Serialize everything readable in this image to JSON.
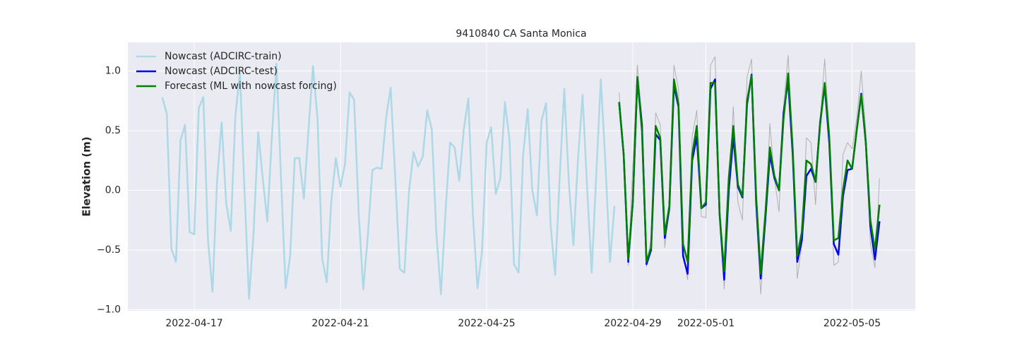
{
  "chart_data": {
    "type": "line",
    "title": "9410840 CA Santa Monica",
    "y_label": "Elevation (m)",
    "xlim": [
      "2022-04-15T04:24",
      "2022-05-06T17:30"
    ],
    "xticks": [
      "2022-04-17",
      "2022-04-21",
      "2022-04-25",
      "2022-04-29",
      "2022-05-01",
      "2022-05-05"
    ],
    "ylim": [
      -1.01,
      1.24
    ],
    "yticks": [
      {
        "value": -1,
        "label": "−1.0"
      },
      {
        "value": -0.5,
        "label": "−0.5"
      },
      {
        "value": 0,
        "label": "0.0"
      },
      {
        "value": 0.5,
        "label": "0.5"
      },
      {
        "value": 1,
        "label": "1.0"
      }
    ],
    "grid": true,
    "legend": "upper left",
    "background": "#eaeaf2",
    "series": [
      {
        "name": "Nowcast (ADCIRC-train)",
        "color": "#add8e6",
        "width": 2.5,
        "x": [
          "2022-04-16T03:00",
          "2022-04-16T06:00",
          "2022-04-16T09:00",
          "2022-04-16T12:00",
          "2022-04-16T15:00",
          "2022-04-16T18:00",
          "2022-04-16T21:00",
          "2022-04-17T00:00",
          "2022-04-17T03:00",
          "2022-04-17T06:00",
          "2022-04-17T09:00",
          "2022-04-17T12:00",
          "2022-04-17T15:00",
          "2022-04-17T18:00",
          "2022-04-17T21:00",
          "2022-04-18T00:00",
          "2022-04-18T03:00",
          "2022-04-18T06:00",
          "2022-04-18T09:00",
          "2022-04-18T12:00",
          "2022-04-18T15:00",
          "2022-04-18T18:00",
          "2022-04-18T21:00",
          "2022-04-19T00:00",
          "2022-04-19T03:00",
          "2022-04-19T06:00",
          "2022-04-19T09:00",
          "2022-04-19T12:00",
          "2022-04-19T15:00",
          "2022-04-19T18:00",
          "2022-04-19T21:00",
          "2022-04-20T00:00",
          "2022-04-20T03:00",
          "2022-04-20T06:00",
          "2022-04-20T09:00",
          "2022-04-20T12:00",
          "2022-04-20T15:00",
          "2022-04-20T18:00",
          "2022-04-20T21:00",
          "2022-04-21T00:00",
          "2022-04-21T03:00",
          "2022-04-21T06:00",
          "2022-04-21T09:00",
          "2022-04-21T12:00",
          "2022-04-21T15:00",
          "2022-04-21T18:00",
          "2022-04-21T21:00",
          "2022-04-22T00:00",
          "2022-04-22T03:00",
          "2022-04-22T06:00",
          "2022-04-22T09:00",
          "2022-04-22T12:00",
          "2022-04-22T15:00",
          "2022-04-22T18:00",
          "2022-04-22T21:00",
          "2022-04-23T00:00",
          "2022-04-23T03:00",
          "2022-04-23T06:00",
          "2022-04-23T09:00",
          "2022-04-23T12:00",
          "2022-04-23T15:00",
          "2022-04-23T18:00",
          "2022-04-23T21:00",
          "2022-04-24T00:00",
          "2022-04-24T03:00",
          "2022-04-24T06:00",
          "2022-04-24T09:00",
          "2022-04-24T12:00",
          "2022-04-24T15:00",
          "2022-04-24T18:00",
          "2022-04-24T21:00",
          "2022-04-25T00:00",
          "2022-04-25T03:00",
          "2022-04-25T06:00",
          "2022-04-25T09:00",
          "2022-04-25T12:00",
          "2022-04-25T15:00",
          "2022-04-25T18:00",
          "2022-04-25T21:00",
          "2022-04-26T00:00",
          "2022-04-26T03:00",
          "2022-04-26T06:00",
          "2022-04-26T09:00",
          "2022-04-26T12:00",
          "2022-04-26T15:00",
          "2022-04-26T18:00",
          "2022-04-26T21:00",
          "2022-04-27T00:00",
          "2022-04-27T03:00",
          "2022-04-27T06:00",
          "2022-04-27T09:00",
          "2022-04-27T12:00",
          "2022-04-27T15:00",
          "2022-04-27T18:00",
          "2022-04-27T21:00",
          "2022-04-28T00:00",
          "2022-04-28T03:00",
          "2022-04-28T06:00",
          "2022-04-28T09:00",
          "2022-04-28T12:00"
        ],
        "values": [
          0.78,
          0.64,
          -0.49,
          -0.6,
          0.42,
          0.55,
          -0.35,
          -0.37,
          0.69,
          0.78,
          -0.41,
          -0.85,
          0.08,
          0.57,
          -0.11,
          -0.34,
          0.62,
          0.99,
          0.0,
          -0.91,
          -0.35,
          0.49,
          0.1,
          -0.26,
          0.45,
          1.06,
          0.1,
          -0.82,
          -0.55,
          0.27,
          0.27,
          -0.07,
          0.5,
          1.04,
          0.59,
          -0.57,
          -0.77,
          -0.09,
          0.27,
          0.03,
          0.22,
          0.82,
          0.76,
          -0.19,
          -0.83,
          -0.38,
          0.17,
          0.19,
          0.18,
          0.61,
          0.86,
          0.1,
          -0.66,
          -0.69,
          -0.01,
          0.32,
          0.2,
          0.28,
          0.67,
          0.51,
          -0.36,
          -0.87,
          -0.18,
          0.4,
          0.36,
          0.08,
          0.51,
          0.77,
          -0.21,
          -0.82,
          -0.51,
          0.4,
          0.53,
          -0.03,
          0.1,
          0.74,
          0.43,
          -0.62,
          -0.69,
          0.3,
          0.68,
          0.0,
          -0.21,
          0.58,
          0.73,
          -0.29,
          -0.71,
          0.11,
          0.85,
          0.07,
          -0.46,
          0.26,
          0.8,
          0.02,
          -0.69,
          0.13,
          0.93,
          0.23,
          -0.6,
          -0.13
        ]
      },
      {
        "color": "#b0b0b0",
        "width": 1,
        "x": [
          "2022-04-28T15:00",
          "2022-04-28T18:00",
          "2022-04-28T21:00",
          "2022-04-29T00:00",
          "2022-04-29T03:00",
          "2022-04-29T06:00",
          "2022-04-29T09:00",
          "2022-04-29T12:00",
          "2022-04-29T15:00",
          "2022-04-29T18:00",
          "2022-04-29T21:00",
          "2022-04-30T00:00",
          "2022-04-30T03:00",
          "2022-04-30T06:00",
          "2022-04-30T09:00",
          "2022-04-30T12:00",
          "2022-04-30T15:00",
          "2022-04-30T18:00",
          "2022-04-30T21:00",
          "2022-05-01T00:00",
          "2022-05-01T03:00",
          "2022-05-01T06:00",
          "2022-05-01T09:00",
          "2022-05-01T12:00",
          "2022-05-01T15:00",
          "2022-05-01T18:00",
          "2022-05-01T21:00",
          "2022-05-02T00:00",
          "2022-05-02T03:00",
          "2022-05-02T06:00",
          "2022-05-02T09:00",
          "2022-05-02T12:00",
          "2022-05-02T15:00",
          "2022-05-02T18:00",
          "2022-05-02T21:00",
          "2022-05-03T00:00",
          "2022-05-03T03:00",
          "2022-05-03T06:00",
          "2022-05-03T09:00",
          "2022-05-03T12:00",
          "2022-05-03T15:00",
          "2022-05-03T18:00",
          "2022-05-03T21:00",
          "2022-05-04T00:00",
          "2022-05-04T03:00",
          "2022-05-04T06:00",
          "2022-05-04T09:00",
          "2022-05-04T12:00",
          "2022-05-04T15:00",
          "2022-05-04T18:00",
          "2022-05-04T21:00",
          "2022-05-05T00:00",
          "2022-05-05T03:00",
          "2022-05-05T06:00",
          "2022-05-05T09:00",
          "2022-05-05T12:00",
          "2022-05-05T15:00",
          "2022-05-05T18:00"
        ],
        "values": [
          0.82,
          0.35,
          -0.63,
          0.2,
          1.05,
          0.6,
          -0.64,
          -0.4,
          0.65,
          0.55,
          -0.48,
          -0.1,
          1.05,
          0.85,
          -0.5,
          -0.75,
          0.45,
          0.67,
          -0.22,
          -0.23,
          1.05,
          1.12,
          -0.15,
          -0.83,
          0.0,
          0.7,
          -0.1,
          -0.25,
          0.95,
          1.1,
          -0.2,
          -0.87,
          -0.3,
          0.56,
          0.1,
          -0.18,
          0.7,
          1.13,
          0.4,
          -0.74,
          -0.45,
          0.44,
          0.4,
          -0.12,
          0.58,
          1.1,
          0.5,
          -0.63,
          -0.6,
          0.3,
          0.4,
          0.35,
          0.6,
          1.0,
          0.5,
          -0.45,
          -0.65,
          0.1
        ]
      },
      {
        "name": "Nowcast (ADCIRC-test)",
        "color": "#0000ff",
        "width": 2.5,
        "x": [
          "2022-04-28T15:00",
          "2022-04-28T18:00",
          "2022-04-28T21:00",
          "2022-04-29T00:00",
          "2022-04-29T03:00",
          "2022-04-29T06:00",
          "2022-04-29T09:00",
          "2022-04-29T12:00",
          "2022-04-29T15:00",
          "2022-04-29T18:00",
          "2022-04-29T21:00",
          "2022-04-30T00:00",
          "2022-04-30T03:00",
          "2022-04-30T06:00",
          "2022-04-30T09:00",
          "2022-04-30T12:00",
          "2022-04-30T15:00",
          "2022-04-30T18:00",
          "2022-04-30T21:00",
          "2022-05-01T00:00",
          "2022-05-01T03:00",
          "2022-05-01T06:00",
          "2022-05-01T09:00",
          "2022-05-01T12:00",
          "2022-05-01T15:00",
          "2022-05-01T18:00",
          "2022-05-01T21:00",
          "2022-05-02T00:00",
          "2022-05-02T03:00",
          "2022-05-02T06:00",
          "2022-05-02T09:00",
          "2022-05-02T12:00",
          "2022-05-02T15:00",
          "2022-05-02T18:00",
          "2022-05-02T21:00",
          "2022-05-03T00:00",
          "2022-05-03T03:00",
          "2022-05-03T06:00",
          "2022-05-03T09:00",
          "2022-05-03T12:00",
          "2022-05-03T15:00",
          "2022-05-03T18:00",
          "2022-05-03T21:00",
          "2022-05-04T00:00",
          "2022-05-04T03:00",
          "2022-05-04T06:00",
          "2022-05-04T09:00",
          "2022-05-04T12:00",
          "2022-05-04T15:00",
          "2022-05-04T18:00",
          "2022-05-04T21:00",
          "2022-05-05T00:00",
          "2022-05-05T03:00",
          "2022-05-05T06:00",
          "2022-05-05T09:00",
          "2022-05-05T12:00",
          "2022-05-05T15:00",
          "2022-05-05T18:00"
        ],
        "values": [
          0.74,
          0.3,
          -0.6,
          -0.1,
          0.93,
          0.55,
          -0.62,
          -0.5,
          0.47,
          0.42,
          -0.4,
          -0.15,
          0.88,
          0.7,
          -0.55,
          -0.7,
          0.25,
          0.45,
          -0.15,
          -0.12,
          0.85,
          0.93,
          -0.2,
          -0.75,
          0.0,
          0.45,
          0.03,
          -0.06,
          0.72,
          0.97,
          -0.1,
          -0.74,
          -0.25,
          0.3,
          0.1,
          0.0,
          0.65,
          0.92,
          0.3,
          -0.6,
          -0.42,
          0.12,
          0.18,
          0.07,
          0.57,
          0.88,
          0.4,
          -0.45,
          -0.54,
          -0.05,
          0.17,
          0.18,
          0.5,
          0.81,
          0.4,
          -0.3,
          -0.58,
          -0.26
        ]
      },
      {
        "name": "Forecast (ML with nowcast forcing)",
        "color": "#008000",
        "width": 2.5,
        "x": [
          "2022-04-28T15:00",
          "2022-04-28T18:00",
          "2022-04-28T21:00",
          "2022-04-29T00:00",
          "2022-04-29T03:00",
          "2022-04-29T06:00",
          "2022-04-29T09:00",
          "2022-04-29T12:00",
          "2022-04-29T15:00",
          "2022-04-29T18:00",
          "2022-04-29T21:00",
          "2022-04-30T00:00",
          "2022-04-30T03:00",
          "2022-04-30T06:00",
          "2022-04-30T09:00",
          "2022-04-30T12:00",
          "2022-04-30T15:00",
          "2022-04-30T18:00",
          "2022-04-30T21:00",
          "2022-05-01T00:00",
          "2022-05-01T03:00",
          "2022-05-01T06:00",
          "2022-05-01T09:00",
          "2022-05-01T12:00",
          "2022-05-01T15:00",
          "2022-05-01T18:00",
          "2022-05-01T21:00",
          "2022-05-02T00:00",
          "2022-05-02T03:00",
          "2022-05-02T06:00",
          "2022-05-02T09:00",
          "2022-05-02T12:00",
          "2022-05-02T15:00",
          "2022-05-02T18:00",
          "2022-05-02T21:00",
          "2022-05-03T00:00",
          "2022-05-03T03:00",
          "2022-05-03T06:00",
          "2022-05-03T09:00",
          "2022-05-03T12:00",
          "2022-05-03T15:00",
          "2022-05-03T18:00",
          "2022-05-03T21:00",
          "2022-05-04T00:00",
          "2022-05-04T03:00",
          "2022-05-04T06:00",
          "2022-05-04T09:00",
          "2022-05-04T12:00",
          "2022-05-04T15:00",
          "2022-05-04T18:00",
          "2022-05-04T21:00",
          "2022-05-05T00:00",
          "2022-05-05T03:00",
          "2022-05-05T06:00",
          "2022-05-05T09:00",
          "2022-05-05T12:00",
          "2022-05-05T15:00",
          "2022-05-05T18:00"
        ],
        "values": [
          0.74,
          0.3,
          -0.58,
          -0.1,
          0.95,
          0.5,
          -0.6,
          -0.48,
          0.54,
          0.44,
          -0.37,
          -0.13,
          0.93,
          0.72,
          -0.45,
          -0.6,
          0.3,
          0.54,
          -0.15,
          -0.1,
          0.9,
          0.9,
          -0.2,
          -0.68,
          0.1,
          0.54,
          0.05,
          -0.05,
          0.75,
          0.96,
          -0.05,
          -0.7,
          -0.2,
          0.36,
          0.12,
          0.0,
          0.6,
          0.98,
          0.35,
          -0.55,
          -0.35,
          0.25,
          0.22,
          0.07,
          0.55,
          0.9,
          0.45,
          -0.42,
          -0.4,
          0.0,
          0.25,
          0.18,
          0.5,
          0.8,
          0.4,
          -0.25,
          -0.5,
          -0.12
        ]
      }
    ]
  }
}
